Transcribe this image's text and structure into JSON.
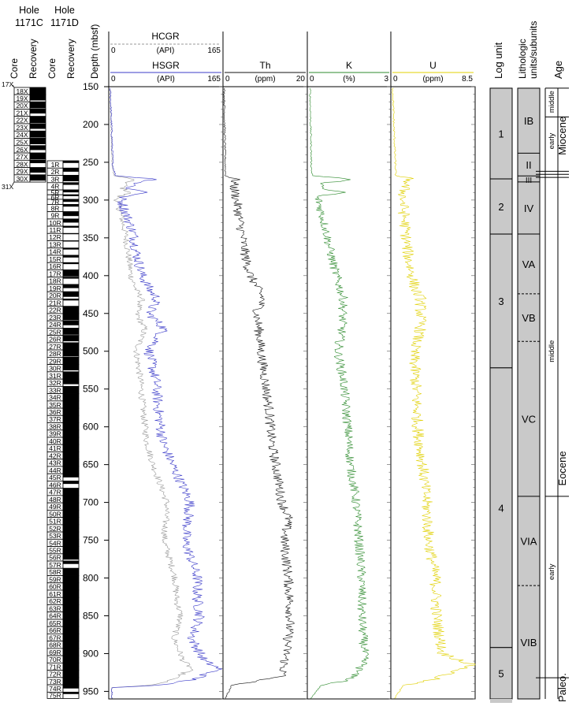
{
  "hole_c_header": [
    "Hole",
    "1171C"
  ],
  "hole_d_header": [
    "Hole",
    "1171D"
  ],
  "recovery_header": [
    "Core",
    "Recovery"
  ],
  "depth_label": "Depth (mbsf)",
  "depth_ticks": [
    150,
    200,
    250,
    300,
    350,
    400,
    450,
    500,
    550,
    600,
    650,
    700,
    750,
    800,
    850,
    900,
    950
  ],
  "hole_c": {
    "top_label": "17X",
    "bottom_label": "31X",
    "cores": [
      {
        "id": "18X",
        "top": 151,
        "bottom": 160.5,
        "rec": 1.0
      },
      {
        "id": "19X",
        "top": 160.5,
        "bottom": 170.1,
        "rec": 0.8
      },
      {
        "id": "20X",
        "top": 170.1,
        "bottom": 179.7,
        "rec": 0.9
      },
      {
        "id": "21X",
        "top": 179.7,
        "bottom": 189.3,
        "rec": 0.6
      },
      {
        "id": "22X",
        "top": 189.3,
        "bottom": 199.0,
        "rec": 0.9
      },
      {
        "id": "23X",
        "top": 199.0,
        "bottom": 208.7,
        "rec": 0.7
      },
      {
        "id": "24X",
        "top": 208.7,
        "bottom": 218.3,
        "rec": 0.9
      },
      {
        "id": "25X",
        "top": 218.3,
        "bottom": 228.0,
        "rec": 0.8
      },
      {
        "id": "26X",
        "top": 228.0,
        "bottom": 237.7,
        "rec": 0.6
      },
      {
        "id": "27X",
        "top": 237.7,
        "bottom": 247.3,
        "rec": 0.9
      },
      {
        "id": "28X",
        "top": 247.3,
        "bottom": 257.0,
        "rec": 0.4
      },
      {
        "id": "29X",
        "top": 257.0,
        "bottom": 266.6,
        "rec": 0.7
      },
      {
        "id": "30X",
        "top": 266.6,
        "bottom": 276.2,
        "rec": 0.8
      }
    ]
  },
  "hole_d": {
    "cores": [
      {
        "id": "1R",
        "top": 248,
        "bottom": 257.7,
        "rec": 0.3
      },
      {
        "id": "2R",
        "top": 257.7,
        "bottom": 267.3,
        "rec": 0.5
      },
      {
        "id": "3R",
        "top": 267.3,
        "bottom": 277.0,
        "rec": 0.8
      },
      {
        "id": "4R",
        "top": 277.0,
        "bottom": 286.6,
        "rec": 0.3
      },
      {
        "id": "5R",
        "top": 286.6,
        "bottom": 293.0,
        "rec": 0.5
      },
      {
        "id": "6R",
        "top": 293.0,
        "bottom": 299.0,
        "rec": 0.3
      },
      {
        "id": "7R",
        "top": 299.0,
        "bottom": 305.8,
        "rec": 0.5
      },
      {
        "id": "8R",
        "top": 305.8,
        "bottom": 315.4,
        "rec": 0.3
      },
      {
        "id": "9R",
        "top": 315.4,
        "bottom": 325.0,
        "rec": 0.6
      },
      {
        "id": "10R",
        "top": 325.0,
        "bottom": 334.6,
        "rec": 0.5
      },
      {
        "id": "11R",
        "top": 334.6,
        "bottom": 344.2,
        "rec": 0.2
      },
      {
        "id": "12R",
        "top": 344.2,
        "bottom": 353.9,
        "rec": 0.1
      },
      {
        "id": "13R",
        "top": 353.9,
        "bottom": 363.5,
        "rec": 0.1
      },
      {
        "id": "14R",
        "top": 363.5,
        "bottom": 373.1,
        "rec": 0.2
      },
      {
        "id": "15R",
        "top": 373.1,
        "bottom": 382.8,
        "rec": 0.3
      },
      {
        "id": "16R",
        "top": 382.8,
        "bottom": 392.4,
        "rec": 0.2
      },
      {
        "id": "17R",
        "top": 392.4,
        "bottom": 402.0,
        "rec": 0.9
      },
      {
        "id": "18R",
        "top": 402.0,
        "bottom": 411.7,
        "rec": 0.2
      },
      {
        "id": "19R",
        "top": 411.7,
        "bottom": 421.3,
        "rec": 0.5
      },
      {
        "id": "20R",
        "top": 421.3,
        "bottom": 430.9,
        "rec": 0.7
      },
      {
        "id": "21R",
        "top": 430.9,
        "bottom": 440.6,
        "rec": 0.2
      },
      {
        "id": "22R",
        "top": 440.6,
        "bottom": 450.2,
        "rec": 1.0
      },
      {
        "id": "23R",
        "top": 450.2,
        "bottom": 459.8,
        "rec": 0.9
      },
      {
        "id": "24R",
        "top": 459.8,
        "bottom": 469.5,
        "rec": 0.6
      },
      {
        "id": "25R",
        "top": 469.5,
        "bottom": 479.1,
        "rec": 0.9
      },
      {
        "id": "26R",
        "top": 479.1,
        "bottom": 488.7,
        "rec": 0.8
      },
      {
        "id": "27R",
        "top": 488.7,
        "bottom": 498.3,
        "rec": 1.0
      },
      {
        "id": "28R",
        "top": 498.3,
        "bottom": 508.0,
        "rec": 0.9
      },
      {
        "id": "29R",
        "top": 508.0,
        "bottom": 517.6,
        "rec": 1.0
      },
      {
        "id": "30R",
        "top": 517.6,
        "bottom": 527.2,
        "rec": 0.8
      },
      {
        "id": "31R",
        "top": 527.2,
        "bottom": 536.9,
        "rec": 1.0
      },
      {
        "id": "32R",
        "top": 536.9,
        "bottom": 546.5,
        "rec": 0.7
      },
      {
        "id": "33R",
        "top": 546.5,
        "bottom": 556.1,
        "rec": 1.0
      },
      {
        "id": "34R",
        "top": 556.1,
        "bottom": 565.8,
        "rec": 1.0
      },
      {
        "id": "35R",
        "top": 565.8,
        "bottom": 575.4,
        "rec": 1.0
      },
      {
        "id": "36R",
        "top": 575.4,
        "bottom": 585.0,
        "rec": 1.0
      },
      {
        "id": "37R",
        "top": 585.0,
        "bottom": 594.6,
        "rec": 1.0
      },
      {
        "id": "38R",
        "top": 594.6,
        "bottom": 604.3,
        "rec": 1.0
      },
      {
        "id": "39R",
        "top": 604.3,
        "bottom": 613.9,
        "rec": 1.0
      },
      {
        "id": "40R",
        "top": 613.9,
        "bottom": 623.5,
        "rec": 1.0
      },
      {
        "id": "41R",
        "top": 623.5,
        "bottom": 633.2,
        "rec": 1.0
      },
      {
        "id": "42R",
        "top": 633.2,
        "bottom": 642.8,
        "rec": 1.0
      },
      {
        "id": "43R",
        "top": 642.8,
        "bottom": 652.4,
        "rec": 1.0
      },
      {
        "id": "44R",
        "top": 652.4,
        "bottom": 662.1,
        "rec": 1.0
      },
      {
        "id": "45R",
        "top": 662.1,
        "bottom": 671.7,
        "rec": 0.5
      },
      {
        "id": "46R",
        "top": 671.7,
        "bottom": 681.3,
        "rec": 0.4
      },
      {
        "id": "47R",
        "top": 681.3,
        "bottom": 690.9,
        "rec": 1.0
      },
      {
        "id": "48R",
        "top": 690.9,
        "bottom": 700.6,
        "rec": 1.0
      },
      {
        "id": "49R",
        "top": 700.6,
        "bottom": 710.2,
        "rec": 1.0
      },
      {
        "id": "50R",
        "top": 710.2,
        "bottom": 719.8,
        "rec": 1.0
      },
      {
        "id": "51R",
        "top": 719.8,
        "bottom": 729.5,
        "rec": 1.0
      },
      {
        "id": "52R",
        "top": 729.5,
        "bottom": 739.1,
        "rec": 1.0
      },
      {
        "id": "53R",
        "top": 739.1,
        "bottom": 748.7,
        "rec": 1.0
      },
      {
        "id": "54R",
        "top": 748.7,
        "bottom": 758.4,
        "rec": 1.0
      },
      {
        "id": "55R",
        "top": 758.4,
        "bottom": 768.0,
        "rec": 1.0
      },
      {
        "id": "56R",
        "top": 768.0,
        "bottom": 777.6,
        "rec": 0.8
      },
      {
        "id": "57R",
        "top": 777.6,
        "bottom": 787.2,
        "rec": 0.4
      },
      {
        "id": "58R",
        "top": 787.2,
        "bottom": 796.9,
        "rec": 1.0
      },
      {
        "id": "59R",
        "top": 796.9,
        "bottom": 806.5,
        "rec": 1.0
      },
      {
        "id": "60R",
        "top": 806.5,
        "bottom": 816.1,
        "rec": 1.0
      },
      {
        "id": "61R",
        "top": 816.1,
        "bottom": 825.8,
        "rec": 1.0
      },
      {
        "id": "62R",
        "top": 825.8,
        "bottom": 835.4,
        "rec": 1.0
      },
      {
        "id": "63R",
        "top": 835.4,
        "bottom": 845.0,
        "rec": 1.0
      },
      {
        "id": "64R",
        "top": 845.0,
        "bottom": 854.7,
        "rec": 1.0
      },
      {
        "id": "65R",
        "top": 854.7,
        "bottom": 864.3,
        "rec": 1.0
      },
      {
        "id": "66R",
        "top": 864.3,
        "bottom": 873.9,
        "rec": 1.0
      },
      {
        "id": "67R",
        "top": 873.9,
        "bottom": 883.5,
        "rec": 1.0
      },
      {
        "id": "68R",
        "top": 883.5,
        "bottom": 893.2,
        "rec": 1.0
      },
      {
        "id": "69R",
        "top": 893.2,
        "bottom": 902.8,
        "rec": 1.0
      },
      {
        "id": "70R",
        "top": 902.8,
        "bottom": 912.4,
        "rec": 1.0
      },
      {
        "id": "71R",
        "top": 912.4,
        "bottom": 922.1,
        "rec": 1.0
      },
      {
        "id": "72R",
        "top": 922.1,
        "bottom": 931.7,
        "rec": 1.0
      },
      {
        "id": "73R",
        "top": 931.7,
        "bottom": 941.3,
        "rec": 1.0
      },
      {
        "id": "74R",
        "top": 941.3,
        "bottom": 951.0,
        "rec": 0.5
      },
      {
        "id": "75R",
        "top": 951.0,
        "bottom": 959.4,
        "rec": 0.3
      }
    ]
  },
  "log_unit_label": "Log unit",
  "log_units": [
    {
      "label": "1",
      "top": 152,
      "bottom": 272
    },
    {
      "label": "2",
      "top": 272,
      "bottom": 345
    },
    {
      "label": "3",
      "top": 345,
      "bottom": 522
    },
    {
      "label": "4",
      "top": 522,
      "bottom": 892
    },
    {
      "label": "5",
      "top": 892,
      "bottom": 960
    }
  ],
  "litho_label": [
    "Lithologic",
    "units/subunits"
  ],
  "litho_units": [
    {
      "label": "IB",
      "top": 152,
      "bottom": 238,
      "top_dashed": false
    },
    {
      "label": "II",
      "top": 238,
      "bottom": 268,
      "top_dashed": false
    },
    {
      "label": "III",
      "top": 268,
      "bottom": 276,
      "top_dashed": false
    },
    {
      "label": "IV",
      "top": 276,
      "bottom": 345,
      "top_dashed": false
    },
    {
      "label": "VA",
      "top": 345,
      "bottom": 424,
      "top_dashed": false
    },
    {
      "label": "VB",
      "top": 424,
      "bottom": 487,
      "top_dashed": true
    },
    {
      "label": "VC",
      "top": 487,
      "bottom": 692,
      "top_dashed": true
    },
    {
      "label": "VIA",
      "top": 692,
      "bottom": 810,
      "top_dashed": false
    },
    {
      "label": "VIB",
      "top": 810,
      "bottom": 960,
      "top_dashed": true
    }
  ],
  "age_label": "Age",
  "age": {
    "sub_labels": [
      {
        "label": "middle",
        "depth": 170
      },
      {
        "label": "early",
        "depth": 222
      },
      {
        "label": "middle",
        "depth": 500
      },
      {
        "label": "early",
        "depth": 792
      }
    ],
    "epochs": [
      {
        "label": "Miocene",
        "depth": 215
      },
      {
        "label": "Eocene",
        "depth": 655
      },
      {
        "label": "Paleo.",
        "depth": 945
      }
    ],
    "boundaries": [
      {
        "depth": 152,
        "full": false
      },
      {
        "depth": 190,
        "full": false
      },
      {
        "depth": 262,
        "full": true
      },
      {
        "depth": 266,
        "full": true
      },
      {
        "depth": 270,
        "full": true
      },
      {
        "depth": 692,
        "full": false
      },
      {
        "depth": 932,
        "full": true
      }
    ]
  },
  "colors": {
    "hsgr": "#3b3bc9",
    "hcgr": "#9a9a9a",
    "th": "#111111",
    "k": "#2e8b2e",
    "u": "#e0d000",
    "unit_fill": "#c9c9c9"
  },
  "chart_data": {
    "type": "line",
    "y_axis": {
      "label": "Depth (mbsf)",
      "range": [
        150,
        960
      ],
      "inverted": true
    },
    "tracks": [
      {
        "series": [
          {
            "name": "HCGR",
            "unit": "(API)",
            "xlim": [
              0,
              165
            ],
            "note": "baseline near 0; rises to 35 at ~272 mbsf"
          },
          {
            "name": "HSGR",
            "unit": "(API)",
            "xlim": [
              0,
              165
            ],
            "note": "series continues down to 960 mbsf"
          }
        ],
        "depth": [
          152,
          200,
          255,
          268,
          272,
          278,
          285,
          290,
          295,
          300,
          320,
          345,
          370,
          400,
          420,
          430,
          450,
          470,
          500,
          540,
          580,
          620,
          650,
          700,
          750,
          800,
          830,
          850,
          880,
          910,
          920,
          935,
          942,
          945,
          960
        ],
        "hsgr": [
          2,
          4,
          6,
          10,
          70,
          40,
          28,
          60,
          22,
          18,
          26,
          36,
          40,
          48,
          60,
          70,
          58,
          80,
          58,
          68,
          72,
          78,
          92,
          118,
          110,
          128,
          128,
          132,
          120,
          138,
          160,
          120,
          70,
          5,
          5
        ],
        "hcgr": [
          2,
          3,
          5,
          8,
          35,
          25,
          20,
          32,
          15,
          12,
          18,
          24,
          28,
          32,
          40,
          48,
          40,
          52,
          40,
          46,
          50,
          55,
          64,
          84,
          80,
          96,
          98,
          104,
          94,
          108,
          120,
          90,
          60,
          4,
          4
        ]
      },
      {
        "series": [
          {
            "name": "Th",
            "unit": "(ppm)",
            "xlim": [
              0,
              20
            ]
          }
        ],
        "depth": [
          152,
          200,
          268,
          272,
          280,
          300,
          345,
          380,
          400,
          430,
          450,
          470,
          500,
          540,
          580,
          620,
          650,
          700,
          720,
          750,
          800,
          850,
          900,
          930,
          942,
          960
        ],
        "th": [
          0.3,
          0.4,
          0.6,
          3,
          2.5,
          3.2,
          4.5,
          5.5,
          6.5,
          9.5,
          8,
          8.5,
          9,
          10,
          11,
          11.5,
          12.5,
          14,
          15.5,
          14.5,
          15.5,
          16,
          15,
          14,
          2,
          0.5
        ]
      },
      {
        "series": [
          {
            "name": "K",
            "unit": "(%)",
            "xlim": [
              0,
              3
            ]
          }
        ],
        "depth": [
          152,
          200,
          262,
          268,
          272,
          278,
          285,
          290,
          295,
          300,
          345,
          380,
          420,
          430,
          470,
          500,
          540,
          600,
          650,
          700,
          750,
          800,
          850,
          900,
          915,
          935,
          942,
          960
        ],
        "k": [
          0.1,
          0.12,
          0.15,
          0.2,
          1.6,
          0.6,
          0.4,
          1.4,
          0.3,
          0.4,
          0.7,
          0.9,
          1.2,
          1.3,
          1.25,
          1.1,
          1.3,
          1.45,
          1.55,
          1.75,
          1.85,
          1.95,
          1.95,
          2.05,
          2.0,
          1.5,
          0.5,
          0.1
        ]
      },
      {
        "series": [
          {
            "name": "U",
            "unit": "(ppm)",
            "xlim": [
              0,
              8.5
            ]
          }
        ],
        "depth": [
          152,
          200,
          268,
          272,
          280,
          300,
          345,
          380,
          420,
          430,
          470,
          500,
          540,
          600,
          650,
          700,
          750,
          800,
          850,
          900,
          915,
          935,
          942,
          960
        ],
        "u": [
          0.2,
          0.3,
          0.5,
          2.0,
          1.4,
          1.2,
          1.5,
          1.8,
          2.5,
          3.0,
          3.0,
          2.3,
          2.5,
          2.7,
          3.2,
          3.6,
          3.8,
          4.5,
          4.6,
          5.2,
          8.3,
          4.0,
          1.2,
          0.4
        ]
      }
    ]
  }
}
